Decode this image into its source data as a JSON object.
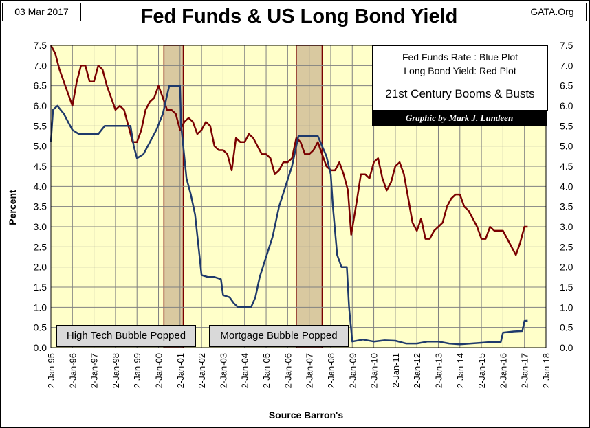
{
  "header": {
    "date": "03 Mar 2017",
    "title": "Fed Funds & US Long Bond Yield",
    "source_site": "GATA.Org"
  },
  "legend": {
    "line1": "Fed Funds Rate : Blue Plot",
    "line2": "Long Bond Yield: Red Plot",
    "line3": "21st Century Booms & Busts",
    "credit": "Graphic by Mark J. Lundeen"
  },
  "annotations": {
    "bubble1": "High Tech Bubble Popped",
    "bubble2": "Mortgage Bubble Popped"
  },
  "colors": {
    "plot_bg": "#ffffc9",
    "fed_funds": "#1f3a6b",
    "long_bond": "#7a0000",
    "shade": "#d9c9a0"
  },
  "chart_data": {
    "type": "line",
    "title": "Fed Funds & US Long Bond Yield",
    "xlabel": "Source Barron's",
    "ylabel": "Percent",
    "ylim": [
      0,
      7.5
    ],
    "xlim": [
      1995,
      2018
    ],
    "x_ticks": [
      "2-Jan-95",
      "2-Jan-96",
      "2-Jan-97",
      "2-Jan-98",
      "2-Jan-99",
      "2-Jan-00",
      "2-Jan-01",
      "2-Jan-02",
      "2-Jan-03",
      "2-Jan-04",
      "2-Jan-05",
      "2-Jan-06",
      "2-Jan-07",
      "2-Jan-08",
      "2-Jan-09",
      "2-Jan-10",
      "2-Jan-11",
      "2-Jan-12",
      "2-Jan-13",
      "2-Jan-14",
      "2-Jan-15",
      "2-Jan-16",
      "2-Jan-17",
      "2-Jan-18"
    ],
    "y_ticks": [
      "0.0",
      "0.5",
      "1.0",
      "1.5",
      "2.0",
      "2.5",
      "3.0",
      "3.5",
      "4.0",
      "4.5",
      "5.0",
      "5.5",
      "6.0",
      "6.5",
      "7.0",
      "7.5"
    ],
    "grid": true,
    "shaded_periods": [
      {
        "label": "High Tech Bubble",
        "start": 2000.25,
        "end": 2001.15
      },
      {
        "label": "Mortgage Bubble",
        "start": 2006.4,
        "end": 2007.6
      }
    ],
    "series": [
      {
        "name": "Long Bond Yield",
        "color": "red",
        "x": [
          1995.0,
          1995.2,
          1995.4,
          1995.6,
          1995.8,
          1996.0,
          1996.2,
          1996.4,
          1996.6,
          1996.8,
          1997.0,
          1997.2,
          1997.4,
          1997.6,
          1997.8,
          1998.0,
          1998.2,
          1998.4,
          1998.6,
          1998.8,
          1999.0,
          1999.2,
          1999.4,
          1999.6,
          1999.8,
          2000.0,
          2000.2,
          2000.4,
          2000.6,
          2000.8,
          2001.0,
          2001.2,
          2001.4,
          2001.6,
          2001.8,
          2002.0,
          2002.2,
          2002.4,
          2002.6,
          2002.8,
          2003.0,
          2003.2,
          2003.4,
          2003.6,
          2003.8,
          2004.0,
          2004.2,
          2004.4,
          2004.6,
          2004.8,
          2005.0,
          2005.2,
          2005.4,
          2005.6,
          2005.8,
          2006.0,
          2006.2,
          2006.4,
          2006.6,
          2006.8,
          2007.0,
          2007.2,
          2007.4,
          2007.6,
          2007.8,
          2008.0,
          2008.2,
          2008.4,
          2008.6,
          2008.8,
          2008.95,
          2009.2,
          2009.4,
          2009.6,
          2009.8,
          2010.0,
          2010.2,
          2010.4,
          2010.6,
          2010.8,
          2011.0,
          2011.2,
          2011.4,
          2011.6,
          2011.8,
          2012.0,
          2012.2,
          2012.4,
          2012.6,
          2012.8,
          2013.0,
          2013.2,
          2013.4,
          2013.6,
          2013.8,
          2014.0,
          2014.2,
          2014.4,
          2014.6,
          2014.8,
          2015.0,
          2015.2,
          2015.4,
          2015.6,
          2015.8,
          2016.0,
          2016.2,
          2016.4,
          2016.6,
          2016.8,
          2017.0,
          2017.15
        ],
        "values": [
          7.5,
          7.3,
          6.9,
          6.6,
          6.3,
          6.0,
          6.6,
          7.0,
          7.0,
          6.6,
          6.6,
          7.0,
          6.9,
          6.5,
          6.2,
          5.9,
          6.0,
          5.9,
          5.5,
          5.1,
          5.1,
          5.4,
          5.9,
          6.1,
          6.2,
          6.5,
          6.2,
          5.9,
          5.9,
          5.8,
          5.4,
          5.6,
          5.7,
          5.6,
          5.3,
          5.4,
          5.6,
          5.5,
          5.0,
          4.9,
          4.9,
          4.8,
          4.4,
          5.2,
          5.1,
          5.1,
          5.3,
          5.2,
          5.0,
          4.8,
          4.8,
          4.7,
          4.3,
          4.4,
          4.6,
          4.6,
          4.7,
          5.2,
          5.1,
          4.8,
          4.8,
          4.9,
          5.1,
          4.8,
          4.5,
          4.4,
          4.4,
          4.6,
          4.3,
          3.9,
          2.8,
          3.6,
          4.3,
          4.3,
          4.2,
          4.6,
          4.7,
          4.2,
          3.9,
          4.1,
          4.5,
          4.6,
          4.3,
          3.7,
          3.1,
          2.9,
          3.2,
          2.7,
          2.7,
          2.9,
          3.0,
          3.1,
          3.5,
          3.7,
          3.8,
          3.8,
          3.5,
          3.4,
          3.2,
          3.0,
          2.7,
          2.7,
          3.0,
          2.9,
          2.9,
          2.9,
          2.7,
          2.5,
          2.3,
          2.6,
          3.0,
          3.0
        ]
      },
      {
        "name": "Fed Funds Rate",
        "color": "blue",
        "x": [
          1995.0,
          1995.1,
          1995.3,
          1995.6,
          1995.8,
          1996.0,
          1996.3,
          1996.6,
          1996.9,
          1997.2,
          1997.5,
          1997.8,
          1998.1,
          1998.4,
          1998.7,
          1998.85,
          1999.0,
          1999.3,
          1999.6,
          1999.9,
          2000.2,
          2000.5,
          2000.8,
          2001.0,
          2001.05,
          2001.15,
          2001.3,
          2001.5,
          2001.7,
          2001.9,
          2002.0,
          2002.3,
          2002.6,
          2002.9,
          2003.0,
          2003.3,
          2003.5,
          2003.7,
          2004.0,
          2004.3,
          2004.5,
          2004.7,
          2005.0,
          2005.3,
          2005.6,
          2005.9,
          2006.2,
          2006.5,
          2006.8,
          2007.1,
          2007.4,
          2007.6,
          2007.8,
          2008.0,
          2008.1,
          2008.3,
          2008.5,
          2008.75,
          2008.85,
          2009.0,
          2009.5,
          2010.0,
          2010.5,
          2011.0,
          2011.5,
          2012.0,
          2012.5,
          2013.0,
          2013.5,
          2014.0,
          2014.5,
          2015.0,
          2015.5,
          2015.9,
          2016.0,
          2016.5,
          2016.9,
          2017.0,
          2017.15
        ],
        "values": [
          5.1,
          5.9,
          6.0,
          5.8,
          5.6,
          5.4,
          5.3,
          5.3,
          5.3,
          5.3,
          5.5,
          5.5,
          5.5,
          5.5,
          5.5,
          5.0,
          4.7,
          4.8,
          5.1,
          5.4,
          5.8,
          6.5,
          6.5,
          6.5,
          5.5,
          5.0,
          4.2,
          3.8,
          3.3,
          2.3,
          1.8,
          1.75,
          1.75,
          1.7,
          1.3,
          1.25,
          1.1,
          1.0,
          1.0,
          1.0,
          1.25,
          1.75,
          2.25,
          2.75,
          3.5,
          4.0,
          4.5,
          5.25,
          5.25,
          5.25,
          5.25,
          5.0,
          4.75,
          4.3,
          3.5,
          2.3,
          2.0,
          2.0,
          1.0,
          0.15,
          0.2,
          0.15,
          0.18,
          0.17,
          0.1,
          0.1,
          0.15,
          0.15,
          0.1,
          0.08,
          0.1,
          0.12,
          0.14,
          0.14,
          0.37,
          0.4,
          0.41,
          0.66,
          0.67
        ]
      }
    ]
  }
}
